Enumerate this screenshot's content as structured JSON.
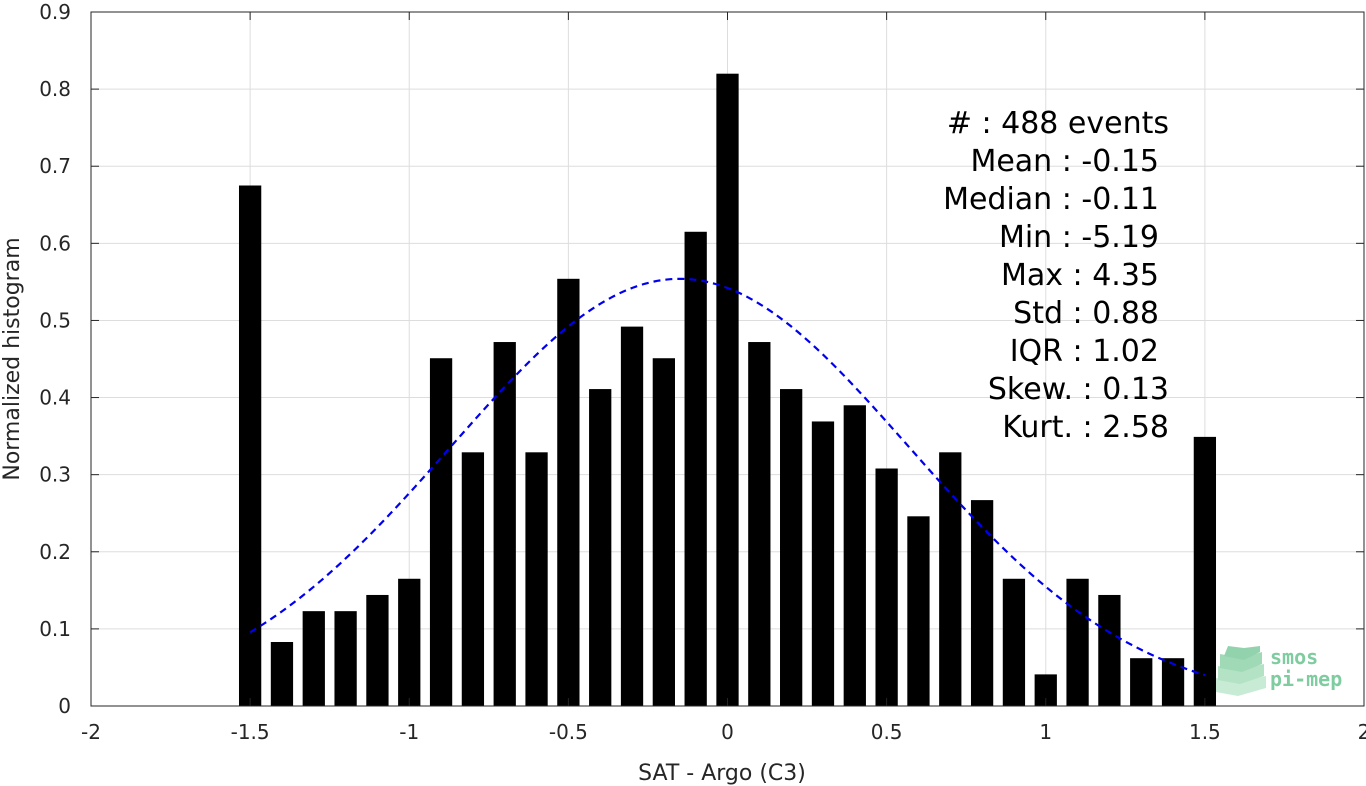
{
  "chart_data": {
    "type": "bar",
    "xlabel": "SAT - Argo (C3)",
    "ylabel": "Normalized histogram",
    "xlim": [
      -2,
      2
    ],
    "ylim": [
      0,
      0.9
    ],
    "xticks": [
      "-2",
      "-1.5",
      "-1",
      "-0.5",
      "0",
      "0.5",
      "1",
      "1.5",
      "2"
    ],
    "yticks": [
      "0",
      "0.1",
      "0.2",
      "0.3",
      "0.4",
      "0.5",
      "0.6",
      "0.7",
      "0.8",
      "0.9"
    ],
    "grid": true,
    "bar_color": "#000000",
    "bin_width": 0.1,
    "bars": [
      {
        "x": -1.5,
        "y": 0.675
      },
      {
        "x": -1.4,
        "y": 0.083
      },
      {
        "x": -1.3,
        "y": 0.123
      },
      {
        "x": -1.2,
        "y": 0.123
      },
      {
        "x": -1.1,
        "y": 0.144
      },
      {
        "x": -1.0,
        "y": 0.165
      },
      {
        "x": -0.9,
        "y": 0.451
      },
      {
        "x": -0.8,
        "y": 0.329
      },
      {
        "x": -0.7,
        "y": 0.472
      },
      {
        "x": -0.6,
        "y": 0.329
      },
      {
        "x": -0.5,
        "y": 0.554
      },
      {
        "x": -0.4,
        "y": 0.411
      },
      {
        "x": -0.3,
        "y": 0.492
      },
      {
        "x": -0.2,
        "y": 0.451
      },
      {
        "x": -0.1,
        "y": 0.615
      },
      {
        "x": 0.0,
        "y": 0.82
      },
      {
        "x": 0.1,
        "y": 0.472
      },
      {
        "x": 0.2,
        "y": 0.411
      },
      {
        "x": 0.3,
        "y": 0.369
      },
      {
        "x": 0.4,
        "y": 0.39
      },
      {
        "x": 0.5,
        "y": 0.308
      },
      {
        "x": 0.6,
        "y": 0.246
      },
      {
        "x": 0.7,
        "y": 0.329
      },
      {
        "x": 0.8,
        "y": 0.267
      },
      {
        "x": 0.9,
        "y": 0.165
      },
      {
        "x": 1.0,
        "y": 0.041
      },
      {
        "x": 1.1,
        "y": 0.165
      },
      {
        "x": 1.2,
        "y": 0.144
      },
      {
        "x": 1.3,
        "y": 0.062
      },
      {
        "x": 1.4,
        "y": 0.062
      },
      {
        "x": 1.5,
        "y": 0.349
      }
    ],
    "fit_curve": {
      "style": "dashed",
      "color": "#0000ee",
      "mean": -0.15,
      "std": 0.72,
      "peak": 0.554,
      "x_range": [
        -1.5,
        1.5
      ]
    },
    "annotation_lines": [
      "#  : 488 events",
      "Mean : -0.15",
      "Median : -0.11",
      "Min : -5.19",
      "Max : 4.35",
      "Std : 0.88",
      "IQR : 1.02",
      "Skew. : 0.13",
      "Kurt. : 2.58"
    ]
  },
  "logo": {
    "line1": "smos",
    "line2": "pi-mep",
    "color": "#7fcca0"
  }
}
